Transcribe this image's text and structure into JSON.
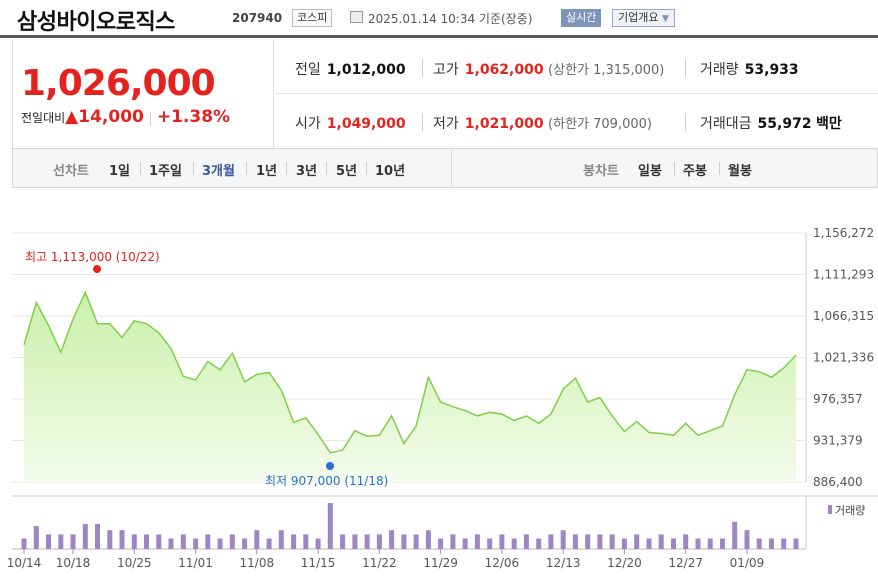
{
  "header": {
    "name": "삼성바이오로직스",
    "code": "207940",
    "market": "코스피",
    "datetime": "2025.01.14 10:34 기준(장중)",
    "realtime": "실시간",
    "company_info": "기업개요"
  },
  "quote": {
    "price": "1,026,000",
    "change_label": "전일대비",
    "change_arrow": "▲",
    "change": "14,000",
    "change_pct": "+1.38%"
  },
  "info": {
    "prev_label": "전일",
    "prev": "1,012,000",
    "high_label": "고가",
    "high": "1,062,000",
    "upper_limit": "(상한가 1,315,000)",
    "volume_label": "거래량",
    "volume": "53,933",
    "open_label": "시가",
    "open": "1,049,000",
    "low_label": "저가",
    "low": "1,021,000",
    "lower_limit": "(하한가 709,000)",
    "amount_label": "거래대금",
    "amount": "55,972",
    "amount_unit": "백만"
  },
  "tabs": {
    "line_label": "선차트",
    "periods": [
      "1일",
      "1주일",
      "3개월",
      "1년",
      "3년",
      "5년",
      "10년"
    ],
    "active_period": "3개월",
    "candle_label": "봉차트",
    "candles": [
      "일봉",
      "주봉",
      "월봉"
    ]
  },
  "colors": {
    "up": "#e4231f",
    "line": "#7fcf4a",
    "fill_top": "#c9f0a8",
    "fill_bottom": "#f4fcec",
    "volume": "#9c86c6",
    "low_marker": "#2b6fd4"
  },
  "chart_data": {
    "type": "area",
    "y_ticks": [
      "1,156,272",
      "1,111,293",
      "1,066,315",
      "1,021,336",
      "976,357",
      "931,379",
      "886,400"
    ],
    "ylim": [
      886400,
      1156272
    ],
    "x_ticks": [
      "10/14",
      "10/18",
      "10/25",
      "11/01",
      "11/08",
      "11/15",
      "11/22",
      "11/29",
      "12/06",
      "12/13",
      "12/20",
      "12/27",
      "01/09"
    ],
    "high_annotation": "최고 1,113,000 (10/22)",
    "low_annotation": "최저 907,000 (11/18)",
    "volume_label": "거래량",
    "values": [
      1035000,
      1081000,
      1056000,
      1027000,
      1063000,
      1092000,
      1058000,
      1058000,
      1043000,
      1061000,
      1058000,
      1048000,
      1031000,
      1001000,
      997000,
      1017000,
      1008000,
      1026000,
      995000,
      1003000,
      1005000,
      986000,
      951000,
      956000,
      938000,
      918000,
      921000,
      942000,
      936000,
      937000,
      958000,
      928000,
      947000,
      1000000,
      973000,
      968000,
      964000,
      958000,
      962000,
      960000,
      953000,
      958000,
      950000,
      960000,
      987000,
      999000,
      973000,
      978000,
      958000,
      941000,
      952000,
      940000,
      939000,
      937000,
      950000,
      937000,
      942000,
      947000,
      981000,
      1008000,
      1006000,
      1000000,
      1010000,
      1024000
    ],
    "volumes": [
      5,
      11,
      7,
      7,
      7,
      12,
      12,
      9,
      9,
      7,
      7,
      7,
      5,
      7,
      5,
      7,
      5,
      7,
      5,
      9,
      5,
      9,
      7,
      7,
      5,
      22,
      7,
      7,
      7,
      7,
      9,
      7,
      7,
      9,
      5,
      7,
      5,
      7,
      5,
      7,
      5,
      7,
      5,
      7,
      9,
      7,
      7,
      7,
      7,
      5,
      7,
      5,
      7,
      5,
      7,
      5,
      5,
      5,
      13,
      9,
      5,
      5,
      5,
      5
    ]
  }
}
